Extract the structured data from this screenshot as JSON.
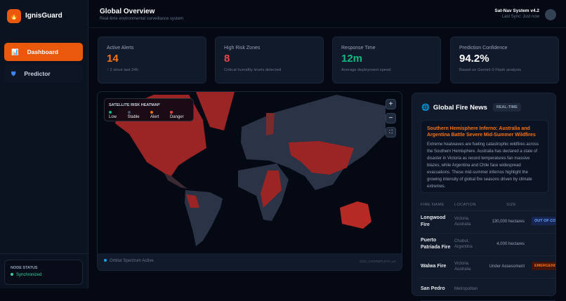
{
  "app": {
    "name": "IgnisGuard"
  },
  "sidebar": {
    "items": [
      {
        "label": "Dashboard",
        "icon": "bar-chart-icon",
        "active": true
      },
      {
        "label": "Predictor",
        "icon": "shield-icon",
        "active": false
      }
    ],
    "node_status": {
      "title": "NODE STATUS",
      "value": "Synchronized"
    }
  },
  "header": {
    "title": "Global Overview",
    "subtitle": "Real-time environmental surveillance system",
    "system": "Sat-Nav System v4.2",
    "sync": "Last Sync: Just now"
  },
  "stats": [
    {
      "label": "Active Alerts",
      "value": "14",
      "note": "↑ 2 since last 24h",
      "color": "#f97316"
    },
    {
      "label": "High Risk Zones",
      "value": "8",
      "note": "Critical humidity levels detected",
      "color": "#ef4444"
    },
    {
      "label": "Response Time",
      "value": "12m",
      "note": "Average deployment speed",
      "color": "#10b981"
    },
    {
      "label": "Prediction Confidence",
      "value": "94.2%",
      "note": "Based on Gemini-3 Flash analysis",
      "color": "#ffffff"
    }
  ],
  "map": {
    "legend_title": "SATELLITE RISK HEATMAP",
    "legend": [
      {
        "label": "Low",
        "color": "#10b981"
      },
      {
        "label": "Stable",
        "color": "#475569"
      },
      {
        "label": "Alert",
        "color": "#f97316"
      },
      {
        "label": "Danger",
        "color": "#ef4444"
      }
    ],
    "zoom_in": "+",
    "zoom_out": "−",
    "footer_status": "Orbital Spectrum Active",
    "footer_tag": "GEO_CHOROPLETH_v4"
  },
  "news": {
    "title": "Global Fire News",
    "badge": "REAL-TIME",
    "article": {
      "headline": "Southern Hemisphere Inferno: Australia and Argentina Battle Severe Mid-Summer Wildfires",
      "body": "Extreme heatwaves are fueling catastrophic wildfires across the Southern Hemisphere. Australia has declared a state of disaster in Victoria as record temperatures fan massive blazes, while Argentina and Chile face widespread evacuations. These mid-summer infernos highlight the growing intensity of global fire seasons driven by climate extremes."
    },
    "columns": [
      "FIRE NAME",
      "LOCATION",
      "SIZE"
    ],
    "rows": [
      {
        "name": "Longwood Fire",
        "location": "Victoria, Australia",
        "size": "130,000 hectares",
        "status": "OUT OF CONTROL",
        "status_color": "#3b82f6"
      },
      {
        "name": "Puerto Patriada Fire",
        "location": "Chubut, Argentina",
        "size": "4,000 hectares",
        "status": "",
        "status_color": ""
      },
      {
        "name": "Walwa Fire",
        "location": "Victoria, Australia",
        "size": "Under Assessment",
        "status": "EMERGENCY",
        "status_color": "#f97316"
      },
      {
        "name": "San Pedro",
        "location": "Metropolitan",
        "size": "",
        "status": "",
        "status_color": ""
      }
    ]
  }
}
